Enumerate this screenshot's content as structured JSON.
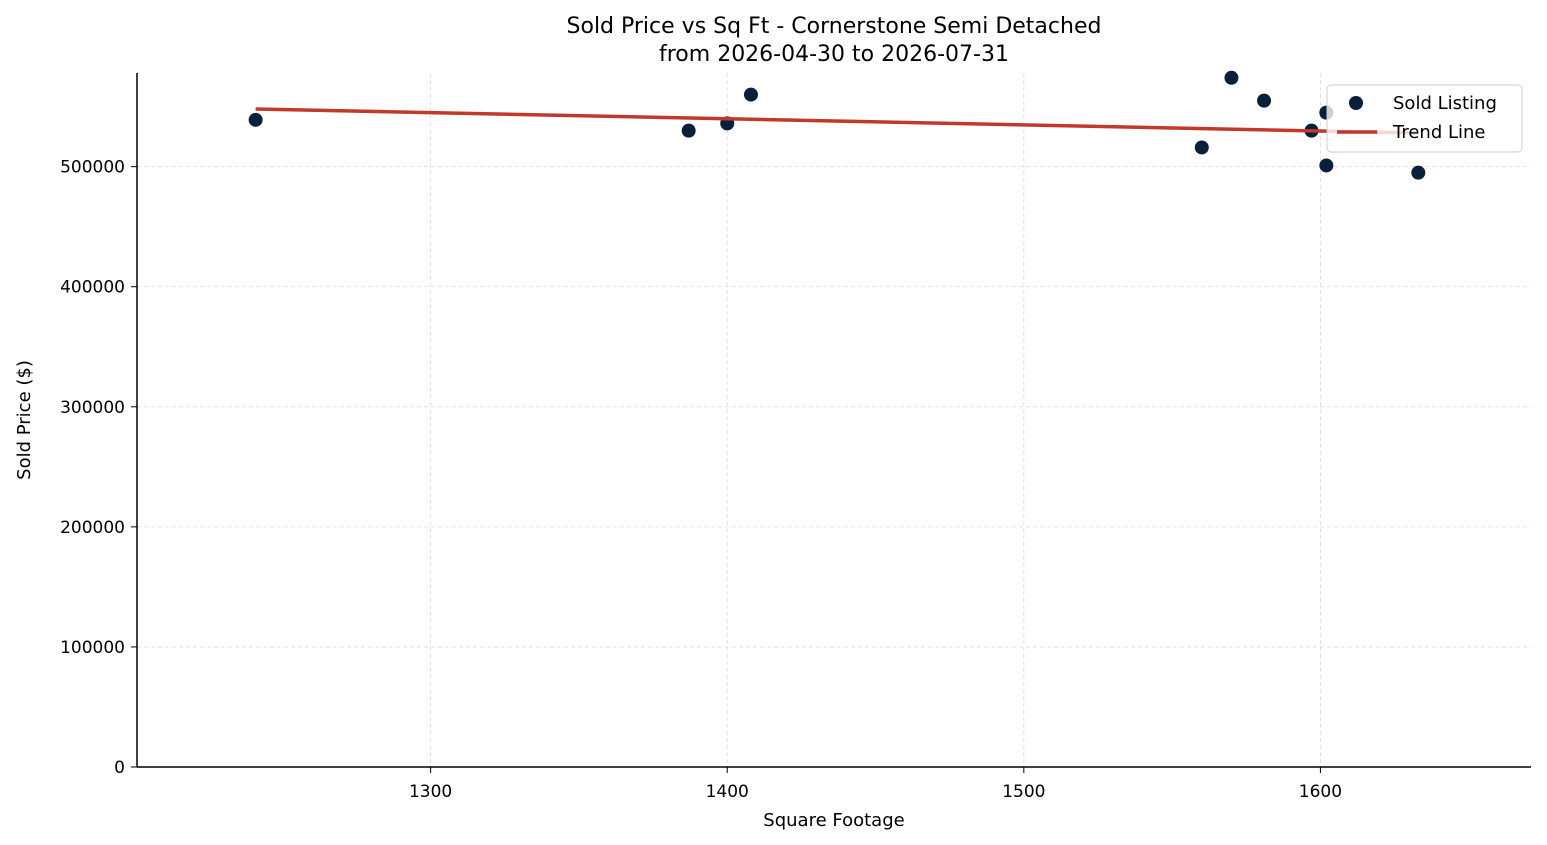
{
  "chart_data": {
    "type": "scatter",
    "title": "Sold Price vs Sq Ft - Cornerstone Semi Detached",
    "subtitle": "from 2026-04-30 to 2026-07-31",
    "xlabel": "Square Footage",
    "ylabel": "Sold Price ($)",
    "xlim": [
      1201,
      1671
    ],
    "ylim": [
      0,
      578000
    ],
    "x_ticks": [
      1300,
      1400,
      1500,
      1600
    ],
    "y_ticks": [
      0,
      100000,
      200000,
      300000,
      400000,
      500000
    ],
    "grid": true,
    "legend_position": "top-right",
    "series": [
      {
        "name": "Sold Listing",
        "kind": "scatter",
        "color": "#0a1f3a",
        "points": [
          {
            "x": 1241,
            "y": 539000
          },
          {
            "x": 1387,
            "y": 530000
          },
          {
            "x": 1400,
            "y": 536000
          },
          {
            "x": 1408,
            "y": 560000
          },
          {
            "x": 1560,
            "y": 516000
          },
          {
            "x": 1570,
            "y": 574000
          },
          {
            "x": 1581,
            "y": 555000
          },
          {
            "x": 1597,
            "y": 530000
          },
          {
            "x": 1602,
            "y": 545000
          },
          {
            "x": 1602,
            "y": 501000
          },
          {
            "x": 1633,
            "y": 495000
          }
        ]
      },
      {
        "name": "Trend Line",
        "kind": "line",
        "color": "#c0392b",
        "points": [
          {
            "x": 1241,
            "y": 548000
          },
          {
            "x": 1633,
            "y": 528000
          }
        ]
      }
    ]
  }
}
